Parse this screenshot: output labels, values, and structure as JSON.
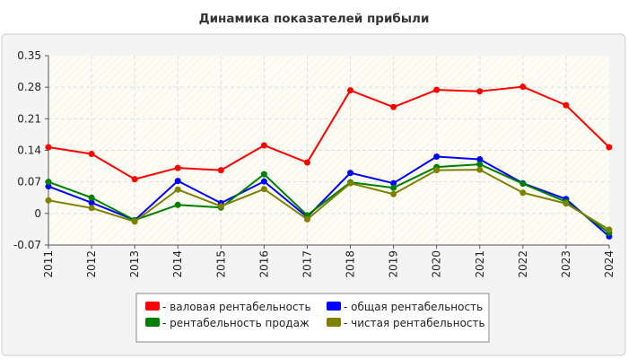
{
  "chart_data": {
    "type": "line",
    "title": "Динамика показателей прибыли",
    "xlabel": "",
    "ylabel": "",
    "ylim": [
      -0.07,
      0.35
    ],
    "y_ticks": [
      "0.35",
      "0.28",
      "0.21",
      "0.14",
      "0.07",
      "0",
      "-0.07"
    ],
    "x": [
      "2011",
      "2012",
      "2013",
      "2014",
      "2015",
      "2016",
      "2017",
      "2018",
      "2019",
      "2020",
      "2021",
      "2022",
      "2023",
      "2024"
    ],
    "grid": true,
    "legend_position": "bottom",
    "series": [
      {
        "name": "- валовая рентабельность",
        "color": "#ff0000",
        "values": [
          0.147,
          0.132,
          0.076,
          0.101,
          0.096,
          0.151,
          0.113,
          0.273,
          0.236,
          0.274,
          0.271,
          0.281,
          0.24,
          0.147
        ]
      },
      {
        "name": "- общая рентабельность",
        "color": "#0000ff",
        "values": [
          0.06,
          0.024,
          -0.015,
          0.072,
          0.023,
          0.071,
          -0.008,
          0.09,
          0.067,
          0.126,
          0.12,
          0.067,
          0.032,
          -0.051
        ]
      },
      {
        "name": "- рентабельность продаж",
        "color": "#008000",
        "values": [
          0.07,
          0.035,
          -0.015,
          0.019,
          0.013,
          0.087,
          -0.004,
          0.069,
          0.057,
          0.103,
          0.109,
          0.066,
          0.026,
          -0.043
        ]
      },
      {
        "name": "- чистая рентабельность",
        "color": "#808000",
        "values": [
          0.029,
          0.012,
          -0.018,
          0.053,
          0.016,
          0.054,
          -0.013,
          0.067,
          0.043,
          0.096,
          0.097,
          0.046,
          0.022,
          -0.036
        ]
      }
    ]
  }
}
